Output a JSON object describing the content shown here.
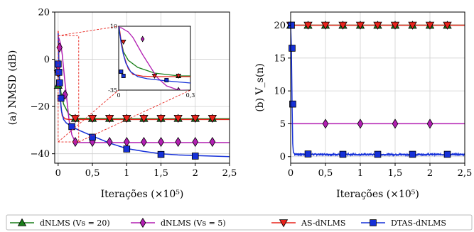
{
  "chart_data": [
    {
      "type": "line",
      "ylabel": "(a) NMSD (dB)",
      "xlabel": "Iterações (×10⁵)",
      "xlim": [
        -0.05,
        2.5
      ],
      "ylim": [
        -44,
        20
      ],
      "xticks": [
        0,
        0.5,
        1,
        1.5,
        2,
        2.5
      ],
      "xtick_labels": [
        "0",
        "0,5",
        "1",
        "1,5",
        "2",
        "2,5"
      ],
      "yticks": [
        -40,
        -20,
        0,
        20
      ],
      "ytick_labels": [
        "−40",
        "−20",
        "0",
        "20"
      ],
      "grid": true,
      "series": [
        {
          "name": "dNLMS (V_s = 20)",
          "color": "#1a7f1a",
          "marker": "triangle-up",
          "x": [
            0,
            0.01,
            0.02,
            0.04,
            0.08,
            0.15,
            0.25,
            1.0,
            2.5
          ],
          "y": [
            8,
            0,
            -8,
            -14,
            -19,
            -23,
            -25,
            -25.2,
            -25.2
          ],
          "marker_x": [
            0,
            0.25,
            0.5,
            0.75,
            1.0,
            1.25,
            1.5,
            1.75,
            2.0,
            2.25
          ],
          "marker_y": [
            -11,
            -25,
            -25,
            -25,
            -25,
            -25,
            -25,
            -25,
            -25,
            -25
          ]
        },
        {
          "name": "dNLMS (V_s = 5)",
          "color": "#b21fb2",
          "marker": "diamond",
          "x": [
            0,
            0.01,
            0.02,
            0.04,
            0.06,
            0.08,
            0.1,
            0.13,
            0.16,
            0.2,
            0.25,
            0.3,
            1.0,
            2.5
          ],
          "y": [
            9,
            9,
            8,
            6,
            2,
            -4,
            -10,
            -18,
            -26,
            -32,
            -35,
            -35.3,
            -35.3,
            -35.3
          ],
          "marker_x": [
            0,
            0.02,
            0.1,
            0.25,
            0.5,
            0.75,
            1.0,
            1.25,
            1.5,
            1.75,
            2.0,
            2.25
          ],
          "marker_y": [
            -3,
            5,
            -15,
            -35,
            -35,
            -35,
            -35,
            -35,
            -35,
            -35,
            -35,
            -35
          ]
        },
        {
          "name": "AS-dNLMS",
          "color": "#e8231c",
          "marker": "triangle-down",
          "x": [
            0,
            0.01,
            0.02,
            0.04,
            0.06,
            0.1,
            0.15,
            0.25,
            2.5
          ],
          "y": [
            12,
            0,
            -10,
            -20,
            -24,
            -25.2,
            -25.5,
            -25.5,
            -25.5
          ],
          "marker_x": [
            0,
            0.25,
            0.5,
            0.75,
            1.0,
            1.25,
            1.5,
            1.75,
            2.0,
            2.25
          ],
          "marker_y": [
            -6,
            -25,
            -25,
            -25,
            -25,
            -25,
            -25,
            -25,
            -25,
            -25
          ]
        },
        {
          "name": "DTAS-dNLMS",
          "color": "#1530d8",
          "marker": "square",
          "x": [
            0,
            0.01,
            0.02,
            0.03,
            0.05,
            0.08,
            0.12,
            0.2,
            0.3,
            0.5,
            0.75,
            1.0,
            1.25,
            1.5,
            1.75,
            2.0,
            2.25,
            2.5
          ],
          "y": [
            11,
            -2,
            -10,
            -16,
            -22,
            -25.5,
            -27,
            -28.5,
            -30,
            -32.5,
            -35.5,
            -37.8,
            -39,
            -40,
            -40.5,
            -40.8,
            -41,
            -41.2
          ],
          "marker_x": [
            0,
            0.01,
            0.02,
            0.04,
            0.2,
            0.5,
            1.0,
            1.5,
            2.0
          ],
          "marker_y": [
            -2,
            -5.5,
            -10,
            -16.5,
            -28.5,
            -33,
            -38,
            -40.3,
            -41
          ]
        }
      ],
      "inset": {
        "xlim": [
          0,
          0.3
        ],
        "ylim": [
          -35,
          10
        ],
        "xtick_labels": [
          "0",
          "0,3"
        ],
        "ytick_labels": [
          "10",
          "-35"
        ]
      }
    },
    {
      "type": "line",
      "ylabel": "(b) V_s(n)",
      "xlabel": "Iterações (×10⁵)",
      "xlim": [
        0,
        2.5
      ],
      "ylim": [
        -1,
        22
      ],
      "xticks": [
        0,
        0.5,
        1,
        1.5,
        2,
        2.5
      ],
      "xtick_labels": [
        "0",
        "0,5",
        "1",
        "1,5",
        "2",
        "2,5"
      ],
      "yticks": [
        0,
        5,
        10,
        15,
        20
      ],
      "ytick_labels": [
        "0",
        "5",
        "10",
        "15",
        "20"
      ],
      "grid": true,
      "series": [
        {
          "name": "dNLMS (V_s = 20)",
          "color": "#1a7f1a",
          "marker": "triangle-up",
          "x": [
            0,
            2.5
          ],
          "y": [
            20,
            20
          ],
          "marker_x": [
            0,
            0.25,
            0.5,
            0.75,
            1.0,
            1.25,
            1.5,
            1.75,
            2.0,
            2.25
          ],
          "marker_y": [
            20,
            20,
            20,
            20,
            20,
            20,
            20,
            20,
            20,
            20
          ]
        },
        {
          "name": "dNLMS (V_s = 5)",
          "color": "#b21fb2",
          "marker": "diamond",
          "x": [
            0,
            2.5
          ],
          "y": [
            5,
            5
          ],
          "marker_x": [
            0.5,
            1.0,
            1.5,
            2.0
          ],
          "marker_y": [
            5,
            5,
            5,
            5
          ]
        },
        {
          "name": "AS-dNLMS",
          "color": "#e8231c",
          "marker": "triangle-down",
          "x": [
            0,
            2.5
          ],
          "y": [
            20,
            20
          ],
          "marker_x": [
            0,
            0.25,
            0.5,
            0.75,
            1.0,
            1.25,
            1.5,
            1.75,
            2.0,
            2.25
          ],
          "marker_y": [
            20,
            20,
            20,
            20,
            20,
            20,
            20,
            20,
            20,
            20
          ]
        },
        {
          "name": "DTAS-dNLMS",
          "color": "#1530d8",
          "marker": "square",
          "x": [
            0,
            0.01,
            0.02,
            0.03,
            0.04,
            0.06,
            0.1,
            0.5,
            1.0,
            1.5,
            2.0,
            2.5
          ],
          "y": [
            20,
            16.5,
            8,
            2,
            0.6,
            0.4,
            0.4,
            0.35,
            0.3,
            0.3,
            0.3,
            0.3
          ],
          "marker_x": [
            0.01,
            0.02,
            0.03,
            0.25,
            0.75,
            1.25,
            1.75,
            2.25
          ],
          "marker_y": [
            20,
            16.5,
            8,
            0.4,
            0.35,
            0.35,
            0.35,
            0.35
          ]
        }
      ]
    }
  ],
  "legend": {
    "placement": "bottom",
    "items": [
      {
        "label": "dNLMS (Vs = 20)",
        "color": "#1a7f1a",
        "marker": "triangle-up"
      },
      {
        "label": "dNLMS (Vs = 5)",
        "color": "#b21fb2",
        "marker": "diamond"
      },
      {
        "label": "AS-dNLMS",
        "color": "#e8231c",
        "marker": "triangle-down"
      },
      {
        "label": "DTAS-dNLMS",
        "color": "#1530d8",
        "marker": "square"
      }
    ]
  }
}
